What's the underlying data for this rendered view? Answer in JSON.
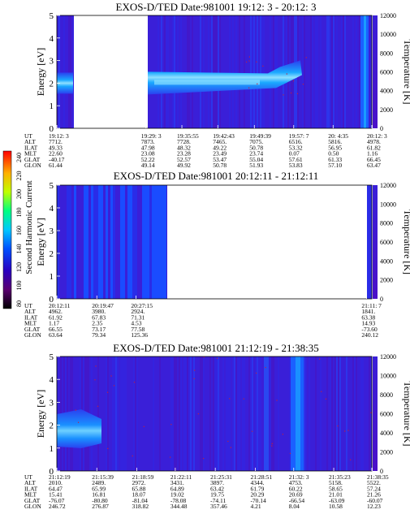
{
  "colorbar": {
    "label": "Second Harmonic Current",
    "ticks": [
      "240",
      "220",
      "200",
      "180",
      "160",
      "140",
      "120",
      "100",
      "80"
    ]
  },
  "panels": [
    {
      "title": "EXOS-D/TED   Date:981001  19:12: 3 - 20:12: 3",
      "ylabel": "Energy [eV]",
      "y2label": "Temperature [K]",
      "ylim": [
        0,
        5
      ],
      "y2lim": [
        0,
        12000
      ],
      "yticks": [
        "0",
        "1",
        "2",
        "3",
        "4",
        "5"
      ],
      "y2ticks": [
        "0",
        "2000",
        "4000",
        "6000",
        "8000",
        "10000",
        "12000"
      ],
      "gap": [
        0.0,
        0.0
      ],
      "orbit_rows": [
        {
          "label": "UT",
          "values": [
            "19:12: 3",
            "19:29: 3",
            "19:35:55",
            "19:42:43",
            "19:49:39",
            "19:57: 7",
            "20: 4:35",
            "20:12: 3"
          ]
        },
        {
          "label": "ALT",
          "values": [
            "7712.",
            "7873.",
            "7728.",
            "7465.",
            "7075.",
            "6516.",
            "5816.",
            "4978."
          ]
        },
        {
          "label": "ILAT",
          "values": [
            "49.33",
            "47.98",
            "48.32",
            "49.22",
            "50.78",
            "53.32",
            "56.95",
            "61.82"
          ]
        },
        {
          "label": "MLT",
          "values": [
            "22.60",
            "23.08",
            "23.28",
            "23.49",
            "23.74",
            "0.07",
            "0.50",
            "1.16"
          ]
        },
        {
          "label": "GLAT",
          "values": [
            "-40.17",
            "52.22",
            "52.57",
            "53.47",
            "55.04",
            "57.61",
            "61.33",
            "66.45"
          ]
        },
        {
          "label": "GLON",
          "values": [
            "61.44",
            "49.14",
            "49.92",
            "50.78",
            "51.93",
            "53.83",
            "57.10",
            "63.47"
          ]
        }
      ]
    },
    {
      "title": "EXOS-D/TED   Date:981001  20:12:11 - 21:12:11",
      "ylabel": "Energy [eV]",
      "y2label": "Temperature [K]",
      "ylim": [
        0,
        5
      ],
      "y2lim": [
        0,
        12000
      ],
      "yticks": [
        "0",
        "1",
        "2",
        "3",
        "4",
        "5"
      ],
      "y2ticks": [
        "0",
        "2000",
        "4000",
        "6000",
        "8000",
        "10000",
        "12000"
      ],
      "orbit_rows": [
        {
          "label": "UT",
          "values": [
            "20:12:11",
            "20:19:47",
            "20:27:15",
            "21:11: 7"
          ]
        },
        {
          "label": "ALT",
          "values": [
            "4962.",
            "3980.",
            "2924.",
            "1841."
          ]
        },
        {
          "label": "ILAT",
          "values": [
            "61.92",
            "67.83",
            "71.31",
            "63.38"
          ]
        },
        {
          "label": "MLT",
          "values": [
            "1.17",
            "2.35",
            "4.53",
            "14.93"
          ]
        },
        {
          "label": "GLAT",
          "values": [
            "66.55",
            "73.17",
            "77.58",
            "-73.60"
          ]
        },
        {
          "label": "GLON",
          "values": [
            "63.64",
            "79.34",
            "125.36",
            "240.12"
          ]
        }
      ]
    },
    {
      "title": "EXOS-D/TED   Date:981001  21:12:19 - 21:38:35",
      "ylabel": "Energy [eV]",
      "y2label": "Temperature [K]",
      "ylim": [
        0,
        5
      ],
      "y2lim": [
        0,
        12000
      ],
      "yticks": [
        "0",
        "1",
        "2",
        "3",
        "4",
        "5"
      ],
      "y2ticks": [
        "0",
        "2000",
        "4000",
        "6000",
        "8000",
        "10000",
        "12000"
      ],
      "orbit_rows": [
        {
          "label": "UT",
          "values": [
            "21:12:19",
            "21:15:39",
            "21:18:59",
            "21:22:11",
            "21:25:31",
            "21:28:51",
            "21:32: 3",
            "21:35:23",
            "21:38:35"
          ]
        },
        {
          "label": "ALT",
          "values": [
            "2010.",
            "2489.",
            "2972.",
            "3431.",
            "3897.",
            "4344.",
            "4753.",
            "5158.",
            "5522."
          ]
        },
        {
          "label": "ILAT",
          "values": [
            "64.47",
            "65.99",
            "65.88",
            "64.89",
            "63.42",
            "61.79",
            "60.22",
            "58.65",
            "57.24"
          ]
        },
        {
          "label": "MLT",
          "values": [
            "15.41",
            "16.81",
            "18.07",
            "19.02",
            "19.75",
            "20.29",
            "20.69",
            "21.01",
            "21.26"
          ]
        },
        {
          "label": "GLAT",
          "values": [
            "-76.07",
            "-80.80",
            "-81.04",
            "-78.08",
            "-74.11",
            "-70.14",
            "-66.54",
            "-63.09",
            "-60.07"
          ]
        },
        {
          "label": "GLON",
          "values": [
            "246.72",
            "276.87",
            "318.82",
            "344.48",
            "357.46",
            "4.21",
            "8.04",
            "10.58",
            "12.23"
          ]
        }
      ]
    }
  ],
  "chart_data": [
    {
      "type": "heatmap",
      "title": "EXOS-D/TED   Date:981001  19:12: 3 - 20:12: 3",
      "xlabel": "UT",
      "ylabel": "Energy [eV]",
      "y2label": "Temperature [K]",
      "ylim": [
        0,
        5
      ],
      "y2lim": [
        0,
        12000
      ],
      "x": [
        "19:12: 3",
        "19:29: 3",
        "19:35:55",
        "19:42:43",
        "19:49:39",
        "19:57: 7",
        "20: 4:35",
        "20:12: 3"
      ],
      "colorbar": {
        "label": "Second Harmonic Current",
        "range": [
          80,
          240
        ]
      },
      "no_data_ut": [
        "19:13:00",
        "19:29: 3"
      ]
    },
    {
      "type": "heatmap",
      "title": "EXOS-D/TED   Date:981001  20:12:11 - 21:12:11",
      "xlabel": "UT",
      "ylabel": "Energy [eV]",
      "y2label": "Temperature [K]",
      "ylim": [
        0,
        5
      ],
      "y2lim": [
        0,
        12000
      ],
      "x": [
        "20:12:11",
        "20:19:47",
        "20:27:15",
        "21:11: 7"
      ],
      "colorbar": {
        "label": "Second Harmonic Current",
        "range": [
          80,
          240
        ]
      },
      "no_data_ut": [
        "20:29:00",
        "21:11: 0"
      ]
    },
    {
      "type": "heatmap",
      "title": "EXOS-D/TED   Date:981001  21:12:19 - 21:38:35",
      "xlabel": "UT",
      "ylabel": "Energy [eV]",
      "y2label": "Temperature [K]",
      "ylim": [
        0,
        5
      ],
      "y2lim": [
        0,
        12000
      ],
      "x": [
        "21:12:19",
        "21:15:39",
        "21:18:59",
        "21:22:11",
        "21:25:31",
        "21:28:51",
        "21:32: 3",
        "21:35:23",
        "21:38:35"
      ],
      "colorbar": {
        "label": "Second Harmonic Current",
        "range": [
          80,
          240
        ]
      }
    }
  ],
  "colors": {
    "background_field": "#3a1fd8",
    "band": "#1fa0ff",
    "band_core": "#7fd8ff",
    "stripe_bright": "#1a78ff",
    "speck": "#c02040"
  }
}
